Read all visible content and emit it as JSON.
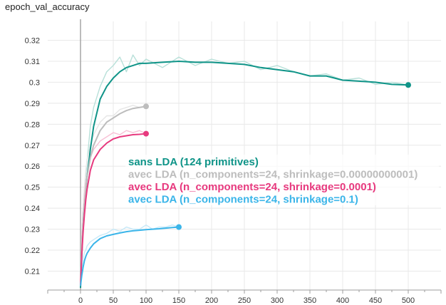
{
  "chart_data": {
    "type": "line",
    "title": "epoch_val_accuracy",
    "xlabel": "",
    "ylabel": "",
    "xlim": [
      -50,
      550
    ],
    "ylim": [
      0.201,
      0.329
    ],
    "x_ticks": [
      0,
      50,
      100,
      150,
      200,
      250,
      300,
      350,
      400,
      450,
      500
    ],
    "y_ticks": [
      0.21,
      0.22,
      0.23,
      0.24,
      0.25,
      0.26,
      0.27,
      0.28,
      0.29,
      0.3,
      0.31,
      0.32
    ],
    "grid": true,
    "legend_position": "center",
    "series": [
      {
        "name": "sans LDA (124 primitives)",
        "color": "#0f9488",
        "raw_color": "#b8e0d9",
        "x": [
          0,
          3,
          5,
          8,
          10,
          15,
          20,
          30,
          40,
          50,
          60,
          70,
          80,
          90,
          100,
          125,
          150,
          175,
          200,
          225,
          250,
          275,
          300,
          325,
          350,
          375,
          400,
          425,
          450,
          475,
          500
        ],
        "smoothed": [
          0.202,
          0.226,
          0.237,
          0.248,
          0.255,
          0.268,
          0.279,
          0.292,
          0.298,
          0.302,
          0.305,
          0.307,
          0.308,
          0.309,
          0.309,
          0.3095,
          0.31,
          0.3095,
          0.3095,
          0.309,
          0.3085,
          0.307,
          0.306,
          0.305,
          0.303,
          0.303,
          0.301,
          0.3005,
          0.3,
          0.299,
          0.2987
        ],
        "raw": [
          0.202,
          0.235,
          0.245,
          0.256,
          0.262,
          0.279,
          0.288,
          0.298,
          0.305,
          0.308,
          0.312,
          0.305,
          0.313,
          0.308,
          0.311,
          0.307,
          0.312,
          0.308,
          0.311,
          0.309,
          0.31,
          0.306,
          0.308,
          0.305,
          0.303,
          0.304,
          0.301,
          0.302,
          0.299,
          0.3,
          0.2987
        ]
      },
      {
        "name": "avec LDA (n_components=24, shrinkage=0.00000000001)",
        "color": "#bdbdbd",
        "raw_color": "#e6e6e6",
        "x": [
          0,
          2,
          4,
          6,
          8,
          10,
          15,
          20,
          30,
          40,
          50,
          60,
          70,
          80,
          90,
          100
        ],
        "smoothed": [
          0.203,
          0.22,
          0.232,
          0.241,
          0.249,
          0.255,
          0.264,
          0.27,
          0.277,
          0.281,
          0.283,
          0.285,
          0.2865,
          0.2875,
          0.288,
          0.2885
        ],
        "raw": [
          0.203,
          0.228,
          0.24,
          0.25,
          0.258,
          0.263,
          0.27,
          0.275,
          0.281,
          0.284,
          0.284,
          0.287,
          0.288,
          0.289,
          0.288,
          0.2885
        ]
      },
      {
        "name": "avec LDA (n_components=24, shrinkage=0.0001)",
        "color": "#e7397e",
        "raw_color": "#f8c1d6",
        "x": [
          0,
          2,
          4,
          6,
          8,
          10,
          15,
          20,
          30,
          40,
          50,
          60,
          70,
          80,
          90,
          100
        ],
        "smoothed": [
          0.203,
          0.218,
          0.229,
          0.237,
          0.244,
          0.249,
          0.258,
          0.263,
          0.268,
          0.271,
          0.273,
          0.274,
          0.2745,
          0.275,
          0.2752,
          0.2755
        ],
        "raw": [
          0.203,
          0.225,
          0.236,
          0.245,
          0.252,
          0.256,
          0.264,
          0.268,
          0.272,
          0.274,
          0.276,
          0.275,
          0.277,
          0.276,
          0.277,
          0.2755
        ]
      },
      {
        "name": "avec LDA (n_components=24, shrinkage=0.1)",
        "color": "#3bb5e9",
        "raw_color": "#c7e9f8",
        "x": [
          0,
          2,
          4,
          6,
          8,
          10,
          15,
          20,
          30,
          40,
          50,
          60,
          70,
          80,
          90,
          100,
          110,
          120,
          130,
          140,
          150
        ],
        "smoothed": [
          0.203,
          0.208,
          0.212,
          0.215,
          0.217,
          0.2185,
          0.221,
          0.223,
          0.2255,
          0.2268,
          0.2275,
          0.2282,
          0.2288,
          0.2292,
          0.2295,
          0.2298,
          0.23,
          0.2302,
          0.2305,
          0.2308,
          0.231
        ],
        "raw": [
          0.203,
          0.212,
          0.216,
          0.219,
          0.22,
          0.222,
          0.224,
          0.225,
          0.227,
          0.228,
          0.23,
          0.229,
          0.231,
          0.23,
          0.23,
          0.232,
          0.23,
          0.231,
          0.231,
          0.232,
          0.231
        ]
      }
    ]
  }
}
